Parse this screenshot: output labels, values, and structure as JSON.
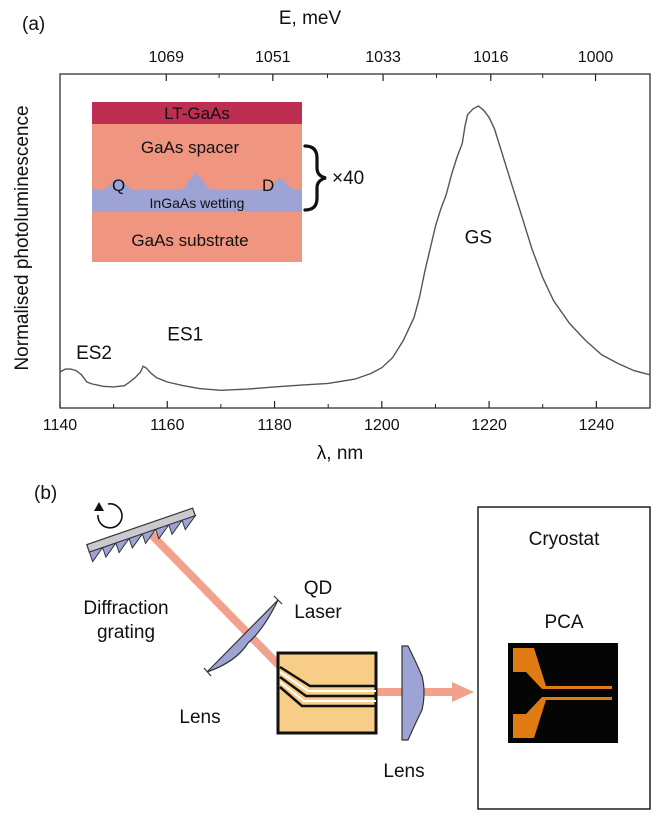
{
  "panel_a": {
    "label": "(a)",
    "chart_data": {
      "type": "line",
      "title": "",
      "xlabel": "λ, nm",
      "ylabel": "Normalised photoluminescence",
      "x2label": "E, meV",
      "xlim": [
        1140,
        1250
      ],
      "ylim": [
        0,
        1
      ],
      "x_ticks": [
        1140,
        1160,
        1180,
        1200,
        1220,
        1240
      ],
      "x2_ticks": [
        1069,
        1051,
        1033,
        1016,
        1000
      ],
      "grid": false,
      "series": [
        {
          "x": [
            1140,
            1141,
            1142,
            1143,
            1144,
            1145,
            1146,
            1147,
            1148,
            1150,
            1152,
            1153,
            1154,
            1155,
            1155.5,
            1156,
            1157,
            1158,
            1160,
            1163,
            1166,
            1170,
            1175,
            1180,
            1185,
            1190,
            1195,
            1198,
            1200,
            1202,
            1204,
            1206,
            1207,
            1208,
            1209,
            1210,
            1211,
            1212,
            1213,
            1214,
            1215,
            1215.5,
            1216,
            1217,
            1218,
            1219,
            1220,
            1221,
            1222,
            1224,
            1226,
            1228,
            1230,
            1232,
            1235,
            1238,
            1241,
            1244,
            1247,
            1250
          ],
          "y": [
            0.07,
            0.08,
            0.08,
            0.075,
            0.06,
            0.035,
            0.028,
            0.024,
            0.02,
            0.018,
            0.022,
            0.035,
            0.05,
            0.07,
            0.09,
            0.085,
            0.065,
            0.05,
            0.035,
            0.022,
            0.012,
            0.006,
            0.01,
            0.018,
            0.024,
            0.03,
            0.045,
            0.065,
            0.085,
            0.12,
            0.18,
            0.26,
            0.33,
            0.42,
            0.5,
            0.58,
            0.64,
            0.69,
            0.76,
            0.82,
            0.87,
            0.93,
            0.97,
            0.99,
            1.0,
            0.985,
            0.96,
            0.92,
            0.86,
            0.74,
            0.62,
            0.5,
            0.4,
            0.32,
            0.24,
            0.18,
            0.13,
            0.1,
            0.075,
            0.06
          ]
        }
      ],
      "annotations": [
        {
          "text": "ES2",
          "x": 1143,
          "y": 0.115
        },
        {
          "text": "ES1",
          "x": 1160,
          "y": 0.18
        },
        {
          "text": "GS",
          "x": 1218,
          "y": 0.52
        }
      ]
    },
    "inset": {
      "cap": "LT-GaAs",
      "spacer": "GaAs spacer",
      "left_dot": "Q",
      "right_dot": "D",
      "wetting": "InGaAs wetting",
      "substrate": "GaAs substrate",
      "repeat": "×40",
      "colors": {
        "cap": "#be2d52",
        "spacer": "#f09580",
        "wetting": "#9ea3d6"
      }
    }
  },
  "panel_b": {
    "label": "(b)",
    "grating_label_1": "Diffraction",
    "grating_label_2": "grating",
    "lens_left_label": "Lens",
    "laser_label_1": "QD",
    "laser_label_2": "Laser",
    "lens_right_label": "Lens",
    "cryostat_label": "Cryostat",
    "pca_label": "PCA",
    "colors": {
      "beam": "#f2a28c",
      "lens": "#9ea3d6",
      "laser": "#f7cd87",
      "pca_metal": "#e07b14"
    }
  }
}
